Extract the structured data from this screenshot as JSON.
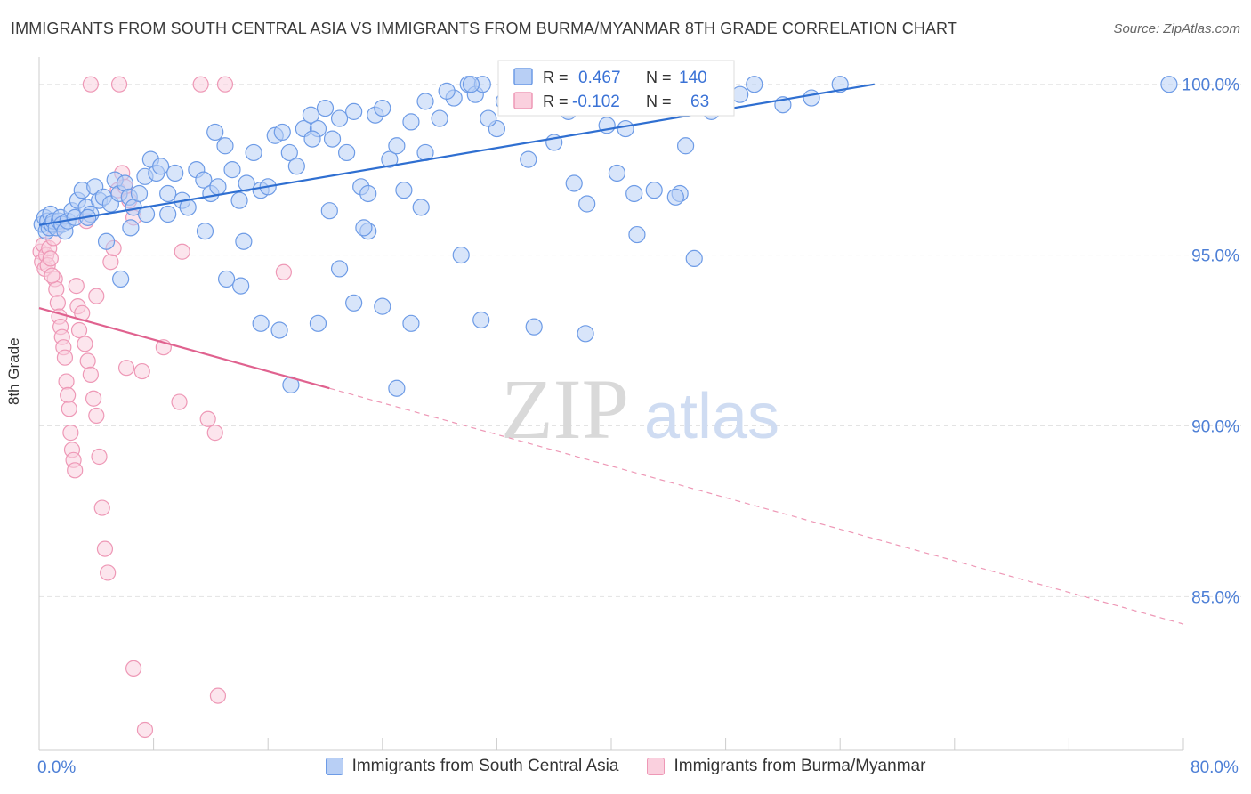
{
  "title": "IMMIGRANTS FROM SOUTH CENTRAL ASIA VS IMMIGRANTS FROM BURMA/MYANMAR 8TH GRADE CORRELATION CHART",
  "source": "Source: ZipAtlas.com",
  "watermark": {
    "zip": "ZIP",
    "atlas": "atlas"
  },
  "chart_data": {
    "type": "scatter",
    "title": "IMMIGRANTS FROM SOUTH CENTRAL ASIA VS IMMIGRANTS FROM BURMA/MYANMAR 8TH GRADE CORRELATION CHART",
    "xlabel": "",
    "ylabel": "8th Grade",
    "xlim": [
      0,
      80
    ],
    "ylim": [
      80.5,
      100.8
    ],
    "x_tick_labels": [
      "0.0%",
      "80.0%"
    ],
    "y_ticks": [
      100,
      95,
      90,
      85
    ],
    "y_tick_labels": [
      "100.0%",
      "95.0%",
      "90.0%",
      "85.0%"
    ],
    "grid": true,
    "legend_placement": "top-center",
    "stats": [
      {
        "r_label": "R =",
        "r": "0.467",
        "n_label": "N =",
        "n": "140"
      },
      {
        "r_label": "R =",
        "r": "-0.102",
        "n_label": "N =",
        "n": "63"
      }
    ],
    "series": [
      {
        "name": "Immigrants from South Central Asia",
        "color": "#6d9be6",
        "fill": "#b8cff5",
        "trend": {
          "x": [
            0,
            58.4
          ],
          "y": [
            95.88,
            100.0
          ]
        },
        "points": [
          [
            0.2,
            95.9
          ],
          [
            0.4,
            96.1
          ],
          [
            0.5,
            95.7
          ],
          [
            0.6,
            96.0
          ],
          [
            0.7,
            95.8
          ],
          [
            0.8,
            96.2
          ],
          [
            0.9,
            95.9
          ],
          [
            1.0,
            96.0
          ],
          [
            1.2,
            95.8
          ],
          [
            1.4,
            96.0
          ],
          [
            1.5,
            96.1
          ],
          [
            1.6,
            95.9
          ],
          [
            1.8,
            95.7
          ],
          [
            2.0,
            96.0
          ],
          [
            2.3,
            96.3
          ],
          [
            2.5,
            96.1
          ],
          [
            2.7,
            96.6
          ],
          [
            3.0,
            96.9
          ],
          [
            3.3,
            96.4
          ],
          [
            3.6,
            96.2
          ],
          [
            3.9,
            97.0
          ],
          [
            4.2,
            96.6
          ],
          [
            4.5,
            96.7
          ],
          [
            5.0,
            96.5
          ],
          [
            5.3,
            97.2
          ],
          [
            5.6,
            96.8
          ],
          [
            6.0,
            97.1
          ],
          [
            6.3,
            96.7
          ],
          [
            6.6,
            96.4
          ],
          [
            7.0,
            96.8
          ],
          [
            7.4,
            97.3
          ],
          [
            7.8,
            97.8
          ],
          [
            8.2,
            97.4
          ],
          [
            8.5,
            97.6
          ],
          [
            9.0,
            96.8
          ],
          [
            9.5,
            97.4
          ],
          [
            10.0,
            96.6
          ],
          [
            10.4,
            96.4
          ],
          [
            11.0,
            97.5
          ],
          [
            11.5,
            97.2
          ],
          [
            12.0,
            96.8
          ],
          [
            12.5,
            97.0
          ],
          [
            13.0,
            98.2
          ],
          [
            13.5,
            97.5
          ],
          [
            14.0,
            96.6
          ],
          [
            14.5,
            97.1
          ],
          [
            15.0,
            98.0
          ],
          [
            15.5,
            96.9
          ],
          [
            16.0,
            97.0
          ],
          [
            16.5,
            98.5
          ],
          [
            17.0,
            98.6
          ],
          [
            17.5,
            98.0
          ],
          [
            18.0,
            97.6
          ],
          [
            18.5,
            98.7
          ],
          [
            19.0,
            99.1
          ],
          [
            19.5,
            98.7
          ],
          [
            20.0,
            99.3
          ],
          [
            20.5,
            98.4
          ],
          [
            21.0,
            99.0
          ],
          [
            21.5,
            98.0
          ],
          [
            22.0,
            99.2
          ],
          [
            22.5,
            97.0
          ],
          [
            23.0,
            96.8
          ],
          [
            23.5,
            99.1
          ],
          [
            24.0,
            99.3
          ],
          [
            24.5,
            97.8
          ],
          [
            25.0,
            98.2
          ],
          [
            25.5,
            96.9
          ],
          [
            26.0,
            98.9
          ],
          [
            27.0,
            99.5
          ],
          [
            28.0,
            99.0
          ],
          [
            29.0,
            99.6
          ],
          [
            30.0,
            100.0
          ],
          [
            30.5,
            99.7
          ],
          [
            31.0,
            100.0
          ],
          [
            32.0,
            98.7
          ],
          [
            32.5,
            99.5
          ],
          [
            33.0,
            100.0
          ],
          [
            34.0,
            99.8
          ],
          [
            35.0,
            99.9
          ],
          [
            36.0,
            100.0
          ],
          [
            37.0,
            99.2
          ],
          [
            38.0,
            99.4
          ],
          [
            38.5,
            100.0
          ],
          [
            39.0,
            99.9
          ],
          [
            40.0,
            99.6
          ],
          [
            41.0,
            98.7
          ],
          [
            12.3,
            98.6
          ],
          [
            14.3,
            95.4
          ],
          [
            15.5,
            93.0
          ],
          [
            16.8,
            92.8
          ],
          [
            17.6,
            91.2
          ],
          [
            19.5,
            93.0
          ],
          [
            21.0,
            94.6
          ],
          [
            22.0,
            93.6
          ],
          [
            23.0,
            95.7
          ],
          [
            24.0,
            93.5
          ],
          [
            25.0,
            91.1
          ],
          [
            26.0,
            93.0
          ],
          [
            27.0,
            98.0
          ],
          [
            28.5,
            99.8
          ],
          [
            30.2,
            100.0
          ],
          [
            31.4,
            99.0
          ],
          [
            34.2,
            97.8
          ],
          [
            36.0,
            98.3
          ],
          [
            37.4,
            97.1
          ],
          [
            38.3,
            96.5
          ],
          [
            39.7,
            98.8
          ],
          [
            40.4,
            97.4
          ],
          [
            41.6,
            96.8
          ],
          [
            43.0,
            96.9
          ],
          [
            44.8,
            96.8
          ],
          [
            45.2,
            98.2
          ],
          [
            47.0,
            99.2
          ],
          [
            49.0,
            99.7
          ],
          [
            50.0,
            100.0
          ],
          [
            52.0,
            99.4
          ],
          [
            54.0,
            99.6
          ],
          [
            56.0,
            100.0
          ],
          [
            79.0,
            100.0
          ],
          [
            3.4,
            96.1
          ],
          [
            4.7,
            95.4
          ],
          [
            5.7,
            94.3
          ],
          [
            6.4,
            95.8
          ],
          [
            7.5,
            96.2
          ],
          [
            9.0,
            96.2
          ],
          [
            11.6,
            95.7
          ],
          [
            13.1,
            94.3
          ],
          [
            14.1,
            94.1
          ],
          [
            19.1,
            98.4
          ],
          [
            20.3,
            96.3
          ],
          [
            22.7,
            95.8
          ],
          [
            26.7,
            96.4
          ],
          [
            29.5,
            95.0
          ],
          [
            30.9,
            93.1
          ],
          [
            34.6,
            92.9
          ],
          [
            38.2,
            92.7
          ],
          [
            41.8,
            95.6
          ],
          [
            44.5,
            96.7
          ],
          [
            45.8,
            94.9
          ]
        ]
      },
      {
        "name": "Immigrants from Burma/Myanmar",
        "color": "#ee98b6",
        "fill": "#fad0de",
        "trend": {
          "x": [
            0,
            20.3
          ],
          "y": [
            93.45,
            91.1
          ]
        },
        "trend_dashed": {
          "x": [
            20.3,
            80
          ],
          "y": [
            91.1,
            84.2
          ]
        },
        "points": [
          [
            0.1,
            95.1
          ],
          [
            0.2,
            94.8
          ],
          [
            0.3,
            95.3
          ],
          [
            0.4,
            94.6
          ],
          [
            0.5,
            95.0
          ],
          [
            0.6,
            94.7
          ],
          [
            0.7,
            95.2
          ],
          [
            0.8,
            94.9
          ],
          [
            1.0,
            95.5
          ],
          [
            1.1,
            94.3
          ],
          [
            1.2,
            94.0
          ],
          [
            1.3,
            93.6
          ],
          [
            1.4,
            93.2
          ],
          [
            1.5,
            92.9
          ],
          [
            1.6,
            92.6
          ],
          [
            1.7,
            92.3
          ],
          [
            1.8,
            92.0
          ],
          [
            1.9,
            91.3
          ],
          [
            2.0,
            90.9
          ],
          [
            2.1,
            90.5
          ],
          [
            2.2,
            89.8
          ],
          [
            2.3,
            89.3
          ],
          [
            2.4,
            89.0
          ],
          [
            2.5,
            88.7
          ],
          [
            2.6,
            94.1
          ],
          [
            2.7,
            93.5
          ],
          [
            2.8,
            92.8
          ],
          [
            3.0,
            93.3
          ],
          [
            3.2,
            92.4
          ],
          [
            3.4,
            91.9
          ],
          [
            3.6,
            91.5
          ],
          [
            3.8,
            90.8
          ],
          [
            4.0,
            90.3
          ],
          [
            4.2,
            89.1
          ],
          [
            4.4,
            87.6
          ],
          [
            4.6,
            86.4
          ],
          [
            4.8,
            85.7
          ],
          [
            5.0,
            94.8
          ],
          [
            5.2,
            95.2
          ],
          [
            5.5,
            96.9
          ],
          [
            5.8,
            97.4
          ],
          [
            6.0,
            97.0
          ],
          [
            6.3,
            96.6
          ],
          [
            6.6,
            96.1
          ],
          [
            3.6,
            100.0
          ],
          [
            5.6,
            100.0
          ],
          [
            11.3,
            100.0
          ],
          [
            13.0,
            100.0
          ],
          [
            10.0,
            95.1
          ],
          [
            8.7,
            92.3
          ],
          [
            11.8,
            90.2
          ],
          [
            12.3,
            89.8
          ],
          [
            17.1,
            94.5
          ],
          [
            0.9,
            94.4
          ],
          [
            1.3,
            95.9
          ],
          [
            3.3,
            96.0
          ],
          [
            4.0,
            93.8
          ],
          [
            6.1,
            91.7
          ],
          [
            7.2,
            91.6
          ],
          [
            9.8,
            90.7
          ],
          [
            12.5,
            82.1
          ],
          [
            7.4,
            81.1
          ],
          [
            6.6,
            82.9
          ]
        ]
      }
    ]
  },
  "legend": {
    "items": [
      {
        "label": "Immigrants from South Central Asia"
      },
      {
        "label": "Immigrants from Burma/Myanmar"
      }
    ]
  }
}
